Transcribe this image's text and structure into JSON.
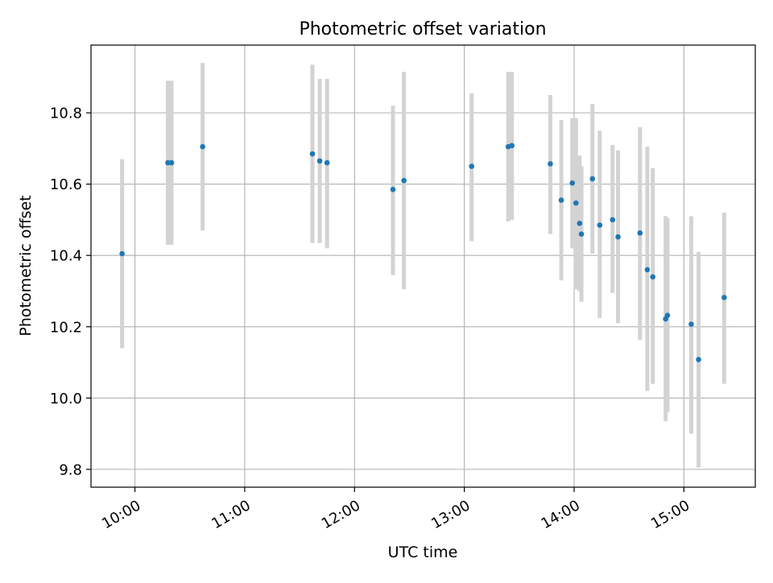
{
  "chart_data": {
    "type": "scatter",
    "title": "Photometric offset variation",
    "xlabel": "UTC time",
    "ylabel": "Photometric offset",
    "x_ticks": [
      "10:00",
      "11:00",
      "12:00",
      "13:00",
      "14:00",
      "15:00"
    ],
    "y_ticks": [
      "9.8",
      "10.0",
      "10.2",
      "10.4",
      "10.6",
      "10.8"
    ],
    "xlim": [
      "09:36",
      "15:39"
    ],
    "ylim": [
      9.75,
      10.99
    ],
    "grid": true,
    "series": [
      {
        "marker_color": "#1f77b4",
        "errorbar_color": "#d3d3d3",
        "points": [
          {
            "time": "09:53",
            "value": 10.405,
            "low": 10.14,
            "high": 10.67
          },
          {
            "time": "10:18",
            "value": 10.66,
            "low": 10.43,
            "high": 10.89
          },
          {
            "time": "10:20",
            "value": 10.66,
            "low": 10.43,
            "high": 10.89
          },
          {
            "time": "10:37",
            "value": 10.705,
            "low": 10.47,
            "high": 10.94
          },
          {
            "time": "11:37",
            "value": 10.685,
            "low": 10.435,
            "high": 10.935
          },
          {
            "time": "11:41",
            "value": 10.665,
            "low": 10.435,
            "high": 10.895
          },
          {
            "time": "11:45",
            "value": 10.66,
            "low": 10.42,
            "high": 10.895
          },
          {
            "time": "12:21",
            "value": 10.585,
            "low": 10.345,
            "high": 10.82
          },
          {
            "time": "12:27",
            "value": 10.61,
            "low": 10.305,
            "high": 10.915
          },
          {
            "time": "13:04",
            "value": 10.65,
            "low": 10.44,
            "high": 10.855
          },
          {
            "time": "13:24",
            "value": 10.705,
            "low": 10.495,
            "high": 10.915
          },
          {
            "time": "13:26",
            "value": 10.708,
            "low": 10.5,
            "high": 10.915
          },
          {
            "time": "13:47",
            "value": 10.657,
            "low": 10.46,
            "high": 10.85
          },
          {
            "time": "13:53",
            "value": 10.555,
            "low": 10.33,
            "high": 10.78
          },
          {
            "time": "13:59",
            "value": 10.603,
            "low": 10.42,
            "high": 10.785
          },
          {
            "time": "14:01",
            "value": 10.547,
            "low": 10.305,
            "high": 10.785
          },
          {
            "time": "14:03",
            "value": 10.49,
            "low": 10.3,
            "high": 10.68
          },
          {
            "time": "14:04",
            "value": 10.46,
            "low": 10.27,
            "high": 10.65
          },
          {
            "time": "14:10",
            "value": 10.615,
            "low": 10.405,
            "high": 10.825
          },
          {
            "time": "14:14",
            "value": 10.485,
            "low": 10.225,
            "high": 10.75
          },
          {
            "time": "14:21",
            "value": 10.5,
            "low": 10.295,
            "high": 10.71
          },
          {
            "time": "14:24",
            "value": 10.452,
            "low": 10.21,
            "high": 10.695
          },
          {
            "time": "14:36",
            "value": 10.463,
            "low": 10.163,
            "high": 10.76
          },
          {
            "time": "14:40",
            "value": 10.36,
            "low": 10.02,
            "high": 10.705
          },
          {
            "time": "14:43",
            "value": 10.34,
            "low": 10.04,
            "high": 10.645
          },
          {
            "time": "14:50",
            "value": 10.222,
            "low": 9.935,
            "high": 10.51
          },
          {
            "time": "14:51",
            "value": 10.232,
            "low": 9.96,
            "high": 10.505
          },
          {
            "time": "15:04",
            "value": 10.207,
            "low": 9.9,
            "high": 10.51
          },
          {
            "time": "15:08",
            "value": 10.108,
            "low": 9.805,
            "high": 10.41
          },
          {
            "time": "15:22",
            "value": 10.282,
            "low": 10.04,
            "high": 10.52
          }
        ]
      }
    ]
  }
}
